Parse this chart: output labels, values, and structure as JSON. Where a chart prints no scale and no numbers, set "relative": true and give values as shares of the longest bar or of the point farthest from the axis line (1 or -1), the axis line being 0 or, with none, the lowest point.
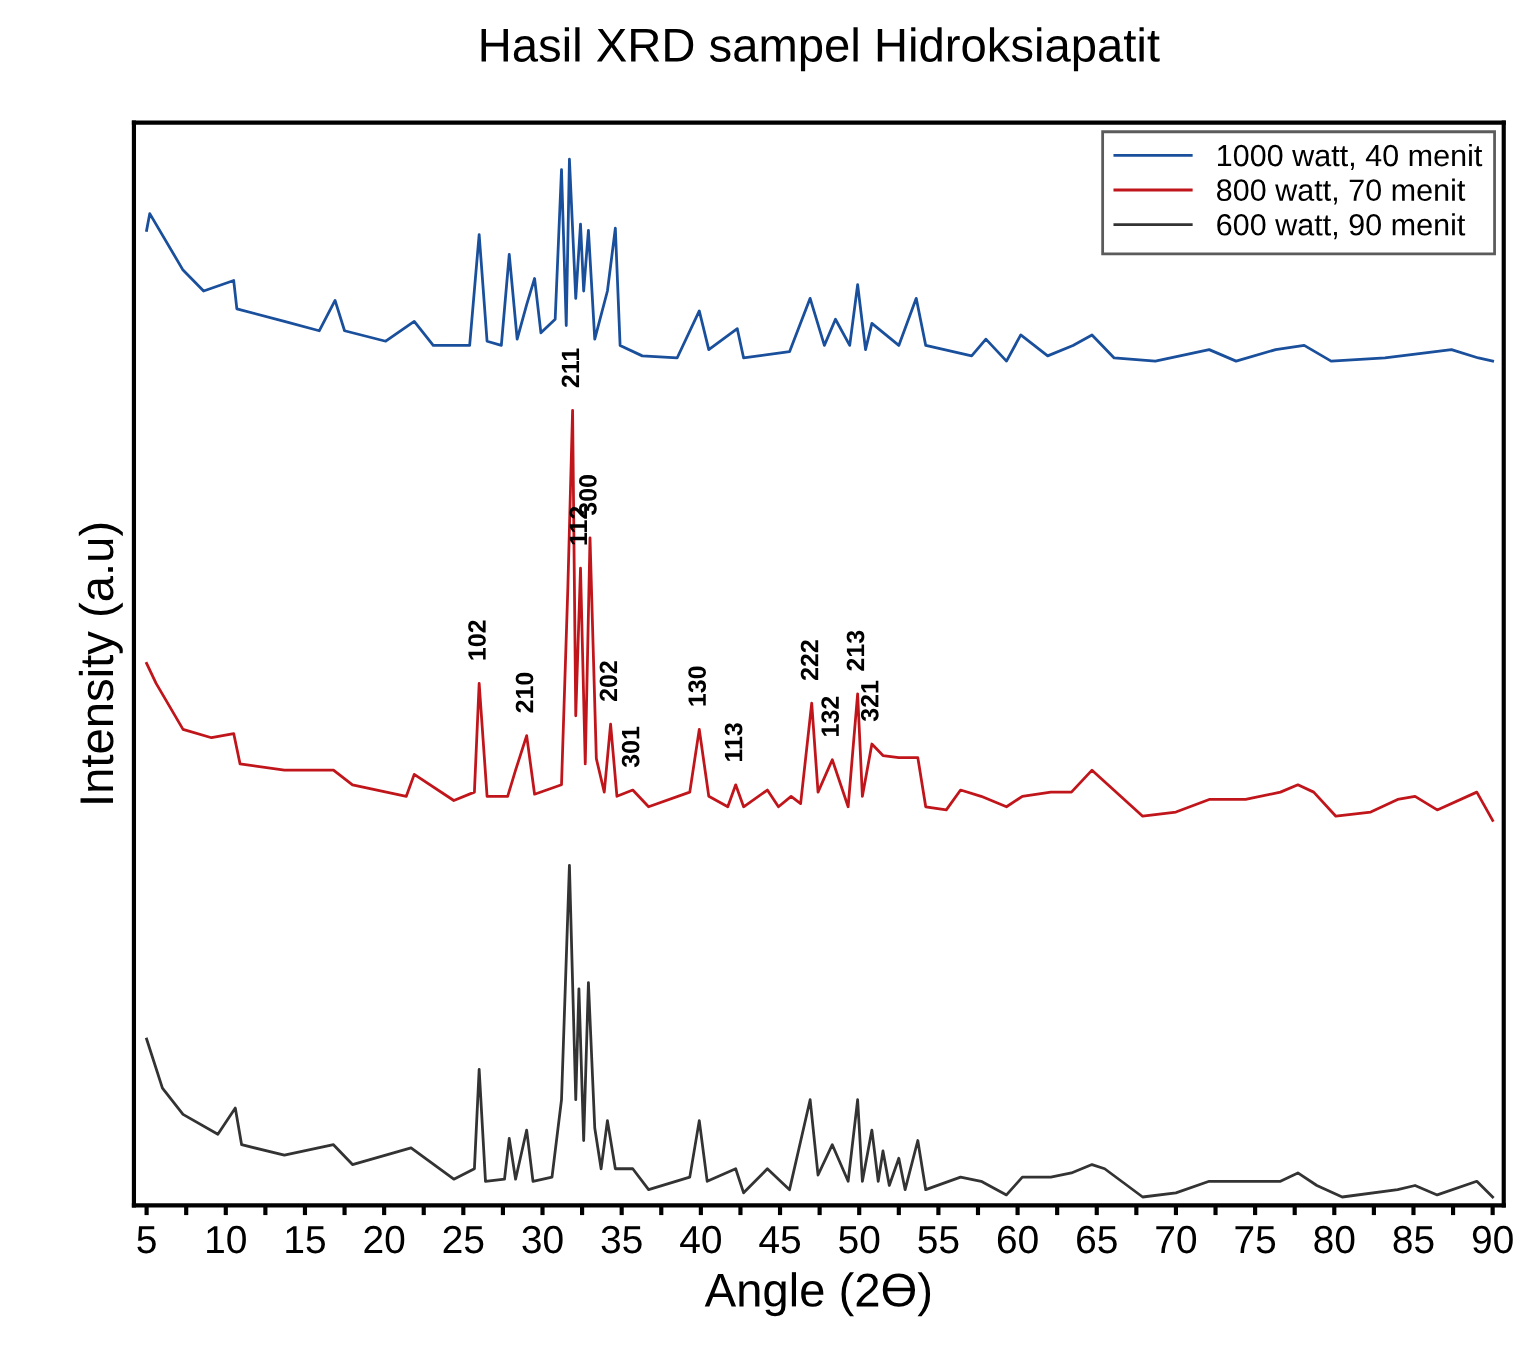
{
  "chart_data": {
    "type": "line",
    "title": "Hasil XRD sampel Hidroksiapatit",
    "xlabel": "Angle (2Ө)",
    "ylabel": "Intensity (a.u)",
    "relative": true,
    "legend": "top right",
    "grid": false,
    "tick_labels": "x",
    "xlim": [
      4.2,
      90.7
    ],
    "xticks": [
      5,
      {
        "value": 7.5,
        "label": null
      },
      10,
      {
        "value": 12.5,
        "label": null
      },
      15,
      {
        "value": 17.5,
        "label": null
      },
      20,
      {
        "value": 22.5,
        "label": null
      },
      25,
      {
        "value": 27.5,
        "label": null
      },
      30,
      {
        "value": 32.5,
        "label": null
      },
      35,
      {
        "value": 37.5,
        "label": null
      },
      40,
      {
        "value": 42.5,
        "label": null
      },
      45,
      {
        "value": 47.5,
        "label": null
      },
      50,
      {
        "value": 52.5,
        "label": null
      },
      55,
      {
        "value": 57.5,
        "label": null
      },
      60,
      {
        "value": 62.5,
        "label": null
      },
      65,
      {
        "value": 67.5,
        "label": null
      },
      70,
      {
        "value": 72.5,
        "label": null
      },
      75,
      {
        "value": 77.5,
        "label": null
      },
      80,
      {
        "value": 82.5,
        "label": null
      },
      85,
      {
        "value": 87.5,
        "label": null
      },
      90
    ],
    "series": [
      {
        "name": "1000 watt, 40 menit",
        "color": "#1a4f9c",
        "x": [
          5.0,
          5.2,
          7.3,
          8.6,
          10.5,
          10.7,
          13.7,
          15.9,
          16.9,
          17.5,
          20.1,
          21.9,
          23.1,
          25.4,
          26.0,
          26.5,
          27.4,
          27.9,
          28.4,
          29.0,
          29.5,
          29.9,
          30.8,
          31.2,
          31.5,
          31.7,
          32.1,
          32.4,
          32.6,
          32.9,
          33.3,
          34.1,
          34.6,
          34.9,
          36.3,
          38.5,
          39.9,
          40.5,
          42.3,
          42.7,
          45.6,
          46.9,
          47.8,
          48.5,
          49.4,
          49.9,
          50.4,
          50.8,
          52.5,
          53.6,
          54.2,
          57.1,
          58.0,
          59.3,
          60.2,
          61.9,
          63.5,
          64.7,
          66.1,
          68.7,
          72.1,
          73.8,
          76.3,
          78.1,
          79.8,
          83.2,
          87.4,
          89.1,
          90.0
        ],
        "values": [
          0.932,
          0.948,
          0.894,
          0.874,
          0.884,
          0.857,
          0.845,
          0.836,
          0.865,
          0.836,
          0.826,
          0.845,
          0.822,
          0.822,
          0.928,
          0.826,
          0.822,
          0.909,
          0.828,
          0.861,
          0.886,
          0.834,
          0.847,
          0.99,
          0.841,
          1.0,
          0.867,
          0.938,
          0.874,
          0.932,
          0.828,
          0.874,
          0.934,
          0.822,
          0.812,
          0.81,
          0.855,
          0.818,
          0.838,
          0.81,
          0.816,
          0.867,
          0.822,
          0.847,
          0.822,
          0.88,
          0.818,
          0.843,
          0.822,
          0.867,
          0.822,
          0.812,
          0.828,
          0.807,
          0.832,
          0.812,
          0.822,
          0.832,
          0.81,
          0.807,
          0.818,
          0.807,
          0.818,
          0.822,
          0.807,
          0.81,
          0.818,
          0.81,
          0.807
        ]
      },
      {
        "name": "800 watt, 70 menit",
        "color": "#c0161b",
        "x": [
          5.0,
          5.6,
          7.3,
          9.1,
          10.5,
          10.9,
          13.7,
          16.8,
          18.0,
          21.4,
          21.9,
          24.4,
          25.7,
          26.0,
          26.5,
          27.8,
          28.3,
          29.0,
          29.5,
          31.2,
          31.6,
          31.9,
          32.1,
          32.4,
          32.7,
          33.0,
          33.4,
          33.9,
          34.3,
          34.7,
          35.7,
          36.7,
          39.3,
          39.9,
          40.5,
          41.7,
          42.2,
          42.7,
          44.2,
          44.9,
          45.7,
          46.3,
          47.0,
          47.4,
          48.3,
          49.3,
          49.9,
          50.2,
          50.8,
          51.5,
          52.5,
          53.7,
          54.2,
          55.5,
          56.4,
          57.7,
          59.3,
          60.3,
          62.1,
          63.4,
          64.7,
          65.5,
          67.9,
          70.0,
          72.1,
          74.4,
          76.6,
          77.7,
          78.7,
          80.1,
          82.3,
          84.0,
          85.1,
          86.5,
          89.0,
          90.0
        ],
        "values": [
          0.518,
          0.499,
          0.455,
          0.447,
          0.451,
          0.422,
          0.416,
          0.416,
          0.402,
          0.391,
          0.412,
          0.387,
          0.395,
          0.499,
          0.391,
          0.391,
          0.416,
          0.449,
          0.393,
          0.402,
          0.59,
          0.76,
          0.468,
          0.609,
          0.422,
          0.638,
          0.427,
          0.395,
          0.46,
          0.391,
          0.397,
          0.381,
          0.395,
          0.455,
          0.391,
          0.381,
          0.402,
          0.381,
          0.397,
          0.381,
          0.391,
          0.384,
          0.48,
          0.395,
          0.426,
          0.381,
          0.489,
          0.391,
          0.441,
          0.43,
          0.428,
          0.428,
          0.381,
          0.378,
          0.397,
          0.391,
          0.381,
          0.391,
          0.395,
          0.395,
          0.416,
          0.405,
          0.372,
          0.376,
          0.388,
          0.388,
          0.395,
          0.402,
          0.395,
          0.372,
          0.376,
          0.388,
          0.391,
          0.378,
          0.395,
          0.368
        ]
      },
      {
        "name": "600 watt, 90 menit",
        "color": "#333333",
        "x": [
          5.0,
          6.0,
          7.3,
          9.5,
          10.6,
          11.0,
          13.7,
          16.8,
          18.0,
          21.7,
          24.4,
          25.7,
          26.0,
          26.4,
          27.6,
          27.9,
          28.3,
          29.0,
          29.4,
          30.6,
          31.2,
          31.7,
          32.1,
          32.3,
          32.6,
          32.9,
          33.3,
          33.7,
          34.1,
          34.6,
          35.7,
          36.7,
          39.3,
          39.9,
          40.4,
          42.2,
          42.7,
          44.2,
          45.6,
          46.9,
          47.4,
          48.3,
          49.3,
          49.9,
          50.2,
          50.8,
          51.2,
          51.5,
          51.9,
          52.5,
          52.9,
          53.7,
          54.2,
          56.4,
          57.7,
          59.3,
          60.3,
          62.1,
          63.4,
          64.7,
          65.5,
          67.9,
          70.0,
          72.1,
          74.4,
          76.6,
          77.7,
          78.9,
          80.5,
          84.0,
          85.1,
          86.5,
          89.0,
          90.0
        ],
        "values": [
          0.159,
          0.112,
          0.087,
          0.068,
          0.093,
          0.058,
          0.048,
          0.058,
          0.039,
          0.055,
          0.025,
          0.035,
          0.13,
          0.023,
          0.025,
          0.064,
          0.025,
          0.072,
          0.023,
          0.027,
          0.101,
          0.325,
          0.101,
          0.207,
          0.062,
          0.213,
          0.074,
          0.035,
          0.081,
          0.035,
          0.035,
          0.015,
          0.027,
          0.081,
          0.023,
          0.035,
          0.012,
          0.035,
          0.015,
          0.101,
          0.029,
          0.058,
          0.023,
          0.101,
          0.023,
          0.072,
          0.023,
          0.052,
          0.019,
          0.045,
          0.015,
          0.062,
          0.015,
          0.027,
          0.023,
          0.01,
          0.027,
          0.027,
          0.031,
          0.039,
          0.035,
          0.008,
          0.012,
          0.023,
          0.023,
          0.023,
          0.031,
          0.019,
          0.008,
          0.015,
          0.019,
          0.01,
          0.023,
          0.008
        ]
      }
    ],
    "annotations": [
      {
        "text": "211",
        "x": 31.9,
        "y": 0.76
      },
      {
        "text": "102",
        "x": 26.0,
        "y": 0.499
      },
      {
        "text": "210",
        "x": 29.0,
        "y": 0.449
      },
      {
        "text": "112",
        "x": 32.4,
        "y": 0.609
      },
      {
        "text": "300",
        "x": 33.0,
        "y": 0.638
      },
      {
        "text": "202",
        "x": 34.3,
        "y": 0.46
      },
      {
        "text": "301",
        "x": 35.7,
        "y": 0.397
      },
      {
        "text": "130",
        "x": 39.9,
        "y": 0.455
      },
      {
        "text": "113",
        "x": 42.2,
        "y": 0.402
      },
      {
        "text": "222",
        "x": 47.0,
        "y": 0.48
      },
      {
        "text": "132",
        "x": 48.3,
        "y": 0.426
      },
      {
        "text": "213",
        "x": 49.9,
        "y": 0.489
      },
      {
        "text": "321",
        "x": 50.8,
        "y": 0.441
      }
    ]
  }
}
